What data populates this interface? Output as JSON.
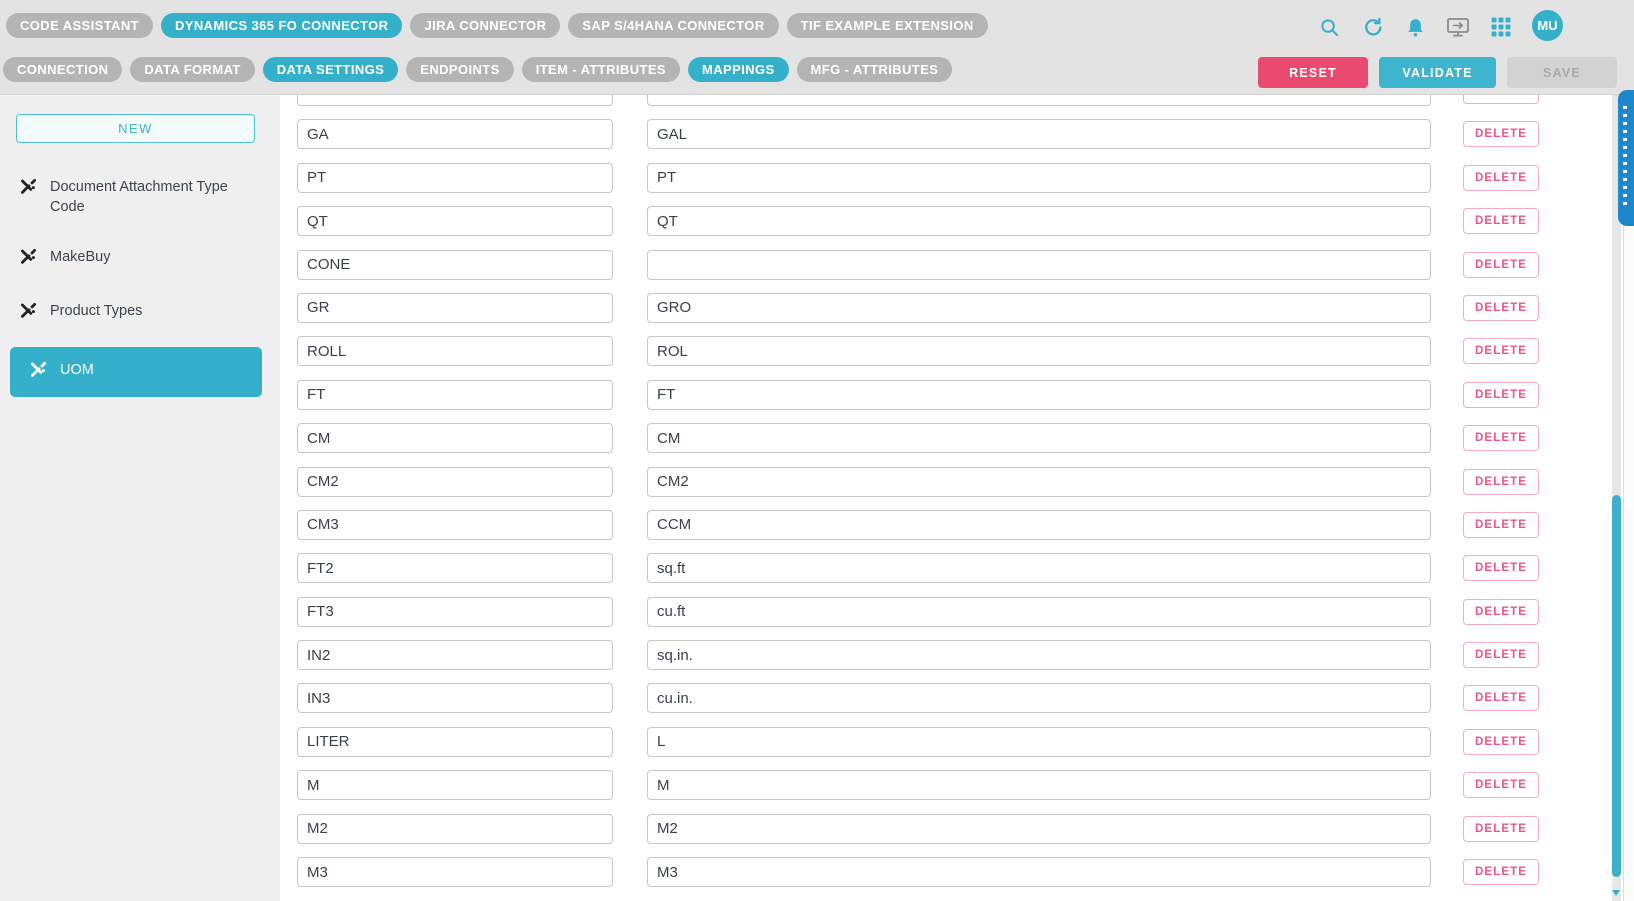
{
  "header": {
    "connector_tabs": [
      {
        "label": "CODE ASSISTANT",
        "active": false
      },
      {
        "label": "DYNAMICS 365 FO CONNECTOR",
        "active": true
      },
      {
        "label": "JIRA CONNECTOR",
        "active": false
      },
      {
        "label": "SAP S/4HANA CONNECTOR",
        "active": false
      },
      {
        "label": "TIF EXAMPLE EXTENSION",
        "active": false
      }
    ],
    "icons": [
      "search-icon",
      "refresh-icon",
      "notifications-icon",
      "remote-session-icon",
      "apps-grid-icon"
    ],
    "avatar_initials": "MU",
    "section_tabs": [
      {
        "label": "CONNECTION",
        "active": false
      },
      {
        "label": "DATA FORMAT",
        "active": false
      },
      {
        "label": "DATA SETTINGS",
        "active": true
      },
      {
        "label": "ENDPOINTS",
        "active": false
      },
      {
        "label": "ITEM - ATTRIBUTES",
        "active": false
      },
      {
        "label": "MAPPINGS",
        "active": true
      },
      {
        "label": "MFG - ATTRIBUTES",
        "active": false
      }
    ],
    "actions": [
      {
        "label": "RESET",
        "style": "danger",
        "enabled": true
      },
      {
        "label": "VALIDATE",
        "style": "primary",
        "enabled": true
      },
      {
        "label": "SAVE",
        "style": "disabled",
        "enabled": false
      }
    ]
  },
  "sidebar": {
    "new_button_label": "NEW",
    "items": [
      {
        "label": "Document Attachment Type Code",
        "selected": false
      },
      {
        "label": "MakeBuy",
        "selected": false
      },
      {
        "label": "Product Types",
        "selected": false
      },
      {
        "label": "UOM",
        "selected": true
      }
    ]
  },
  "mappings": {
    "delete_label": "DELETE",
    "rows": [
      {
        "source": "",
        "target": ""
      },
      {
        "source": "GA",
        "target": "GAL"
      },
      {
        "source": "PT",
        "target": "PT"
      },
      {
        "source": "QT",
        "target": "QT"
      },
      {
        "source": "CONE",
        "target": ""
      },
      {
        "source": "GR",
        "target": "GRO"
      },
      {
        "source": "ROLL",
        "target": "ROL"
      },
      {
        "source": "FT",
        "target": "FT"
      },
      {
        "source": "CM",
        "target": "CM"
      },
      {
        "source": "CM2",
        "target": "CM2"
      },
      {
        "source": "CM3",
        "target": "CCM"
      },
      {
        "source": "FT2",
        "target": "sq.ft"
      },
      {
        "source": "FT3",
        "target": "cu.ft"
      },
      {
        "source": "IN2",
        "target": "sq.in."
      },
      {
        "source": "IN3",
        "target": "cu.in."
      },
      {
        "source": "LITER",
        "target": "L"
      },
      {
        "source": "M",
        "target": "M"
      },
      {
        "source": "M2",
        "target": "M2"
      },
      {
        "source": "M3",
        "target": "M3"
      }
    ]
  },
  "colors": {
    "accent_teal": "#35b0cb",
    "danger_pink": "#ea4a70",
    "delete_pink": "#ee5583",
    "delete_border_pink": "#f6abc4",
    "inactive_pill_gray": "#b4b4b4",
    "header_bg": "#e3e3e3",
    "sidebar_bg": "#efefef",
    "disabled_gray": "#d2d2d2",
    "scrollbar_teal": "#3cb0c9",
    "side_tab_blue": "#1d87c9"
  }
}
